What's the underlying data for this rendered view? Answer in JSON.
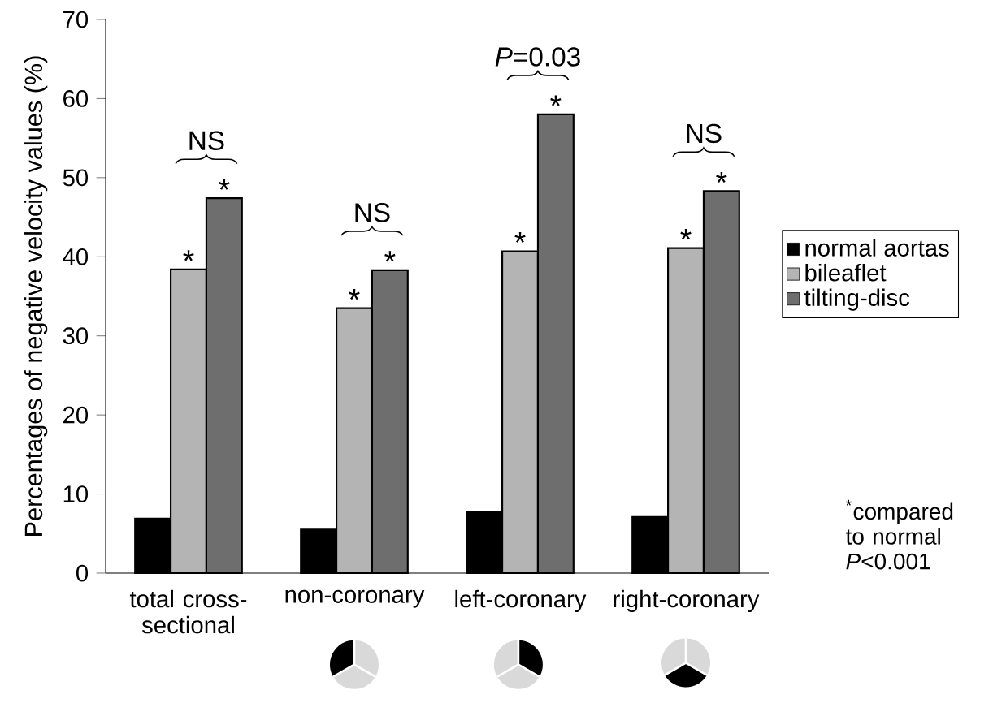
{
  "chart_data": {
    "type": "bar",
    "ylabel": "Percentages of negative velocity values (%)",
    "categories": [
      "total cross-sectional",
      "non-coronary",
      "left-coronary",
      "right-coronary"
    ],
    "series": [
      {
        "name": "normal aortas",
        "color": "#000000",
        "values": [
          6.9,
          5.5,
          7.7,
          7.1
        ]
      },
      {
        "name": "bileaflet",
        "color": "#b4b4b4",
        "values": [
          38.4,
          33.5,
          40.7,
          41.1
        ]
      },
      {
        "name": "tilting-disc",
        "color": "#6e6e6e",
        "values": [
          47.4,
          38.3,
          58,
          48.3
        ]
      }
    ],
    "ylim": [
      0,
      70
    ],
    "yticks": [
      0,
      10,
      20,
      30,
      40,
      50,
      60,
      70
    ],
    "grid": false,
    "legend": "right",
    "annotations": [
      "*",
      "*",
      "*",
      "*",
      "*",
      "*",
      "*",
      "*",
      "NS",
      "NS",
      "*P*=0.03",
      "NS",
      "$^{*}$compared to normal *P*<0.001"
    ]
  }
}
